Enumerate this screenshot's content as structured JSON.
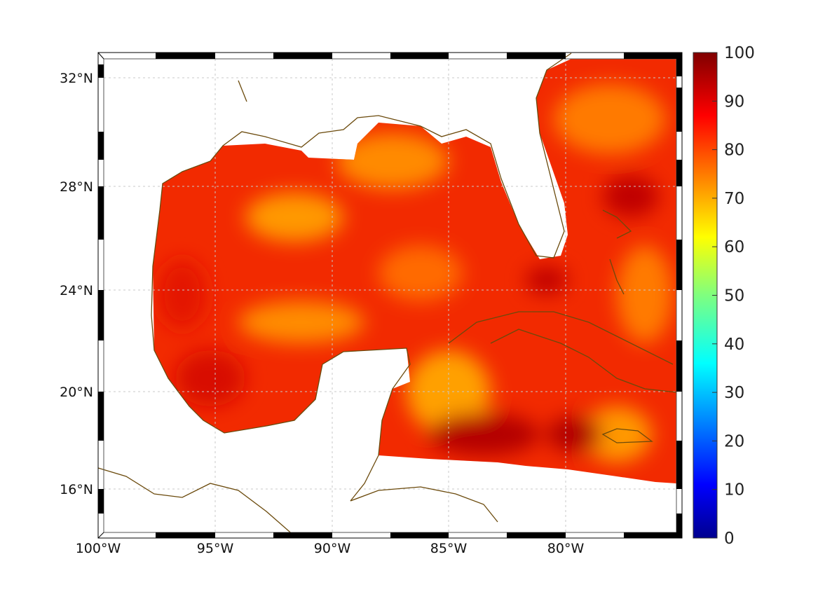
{
  "map": {
    "lon_labels": [
      "100°W",
      "95°W",
      "90°W",
      "85°W",
      "80°W"
    ],
    "lat_labels": [
      "32°N",
      "28°N",
      "24°N",
      "20°N",
      "16°N"
    ],
    "lon_values": [
      -100,
      -95,
      -90,
      -85,
      -80
    ],
    "lat_values": [
      32,
      28,
      24,
      20,
      16
    ],
    "extent": {
      "lon": [
        -100,
        -75
      ],
      "lat": [
        14.2,
        33
      ]
    },
    "coast_color": "#6b4a0c"
  },
  "colorbar": {
    "ticks": [
      "0",
      "10",
      "20",
      "30",
      "40",
      "50",
      "60",
      "70",
      "80",
      "90",
      "100"
    ],
    "range": [
      0,
      100
    ],
    "colormap": "jet"
  }
}
